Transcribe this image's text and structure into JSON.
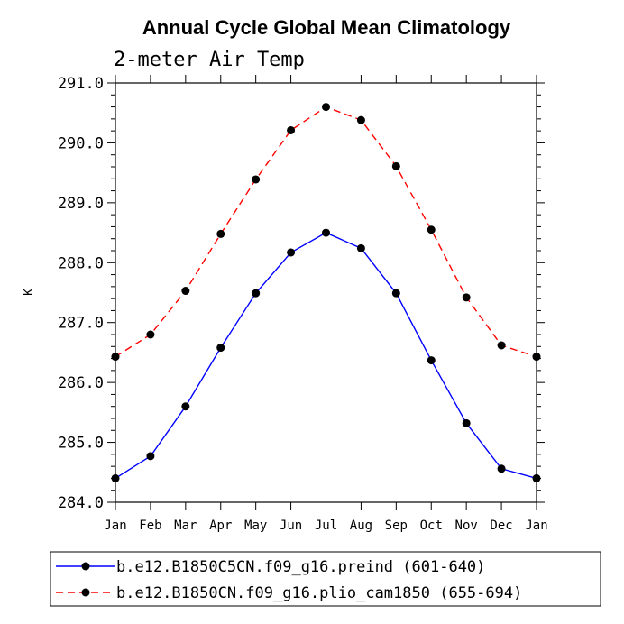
{
  "chart_data": {
    "type": "line",
    "title": "Annual Cycle Global Mean Climatology",
    "subtitle": "2-meter Air Temp",
    "xlabel": "",
    "ylabel": "K",
    "categories": [
      "Jan",
      "Feb",
      "Mar",
      "Apr",
      "May",
      "Jun",
      "Jul",
      "Aug",
      "Sep",
      "Oct",
      "Nov",
      "Dec",
      "Jan"
    ],
    "ylim": [
      284.0,
      291.0
    ],
    "yticks": [
      "284.0",
      "285.0",
      "286.0",
      "287.0",
      "288.0",
      "289.0",
      "290.0",
      "291.0"
    ],
    "grid": false,
    "legend_position": "bottom",
    "series": [
      {
        "name": "b.e12.B1850C5CN.f09_g16.preind (601-640)",
        "color": "#0000ff",
        "line_style": "solid",
        "marker": "filled-circle",
        "values": [
          284.4,
          284.77,
          285.6,
          286.58,
          287.49,
          288.17,
          288.5,
          288.24,
          287.49,
          286.37,
          285.32,
          284.56,
          284.4
        ]
      },
      {
        "name": "b.e12.B1850CN.f09_g16.plio_cam1850 (655-694)",
        "color": "#ff0000",
        "line_style": "dashed",
        "marker": "filled-circle",
        "values": [
          286.43,
          286.8,
          287.53,
          288.48,
          289.39,
          290.21,
          290.6,
          290.38,
          289.61,
          288.55,
          287.42,
          286.62,
          286.43
        ]
      }
    ]
  }
}
